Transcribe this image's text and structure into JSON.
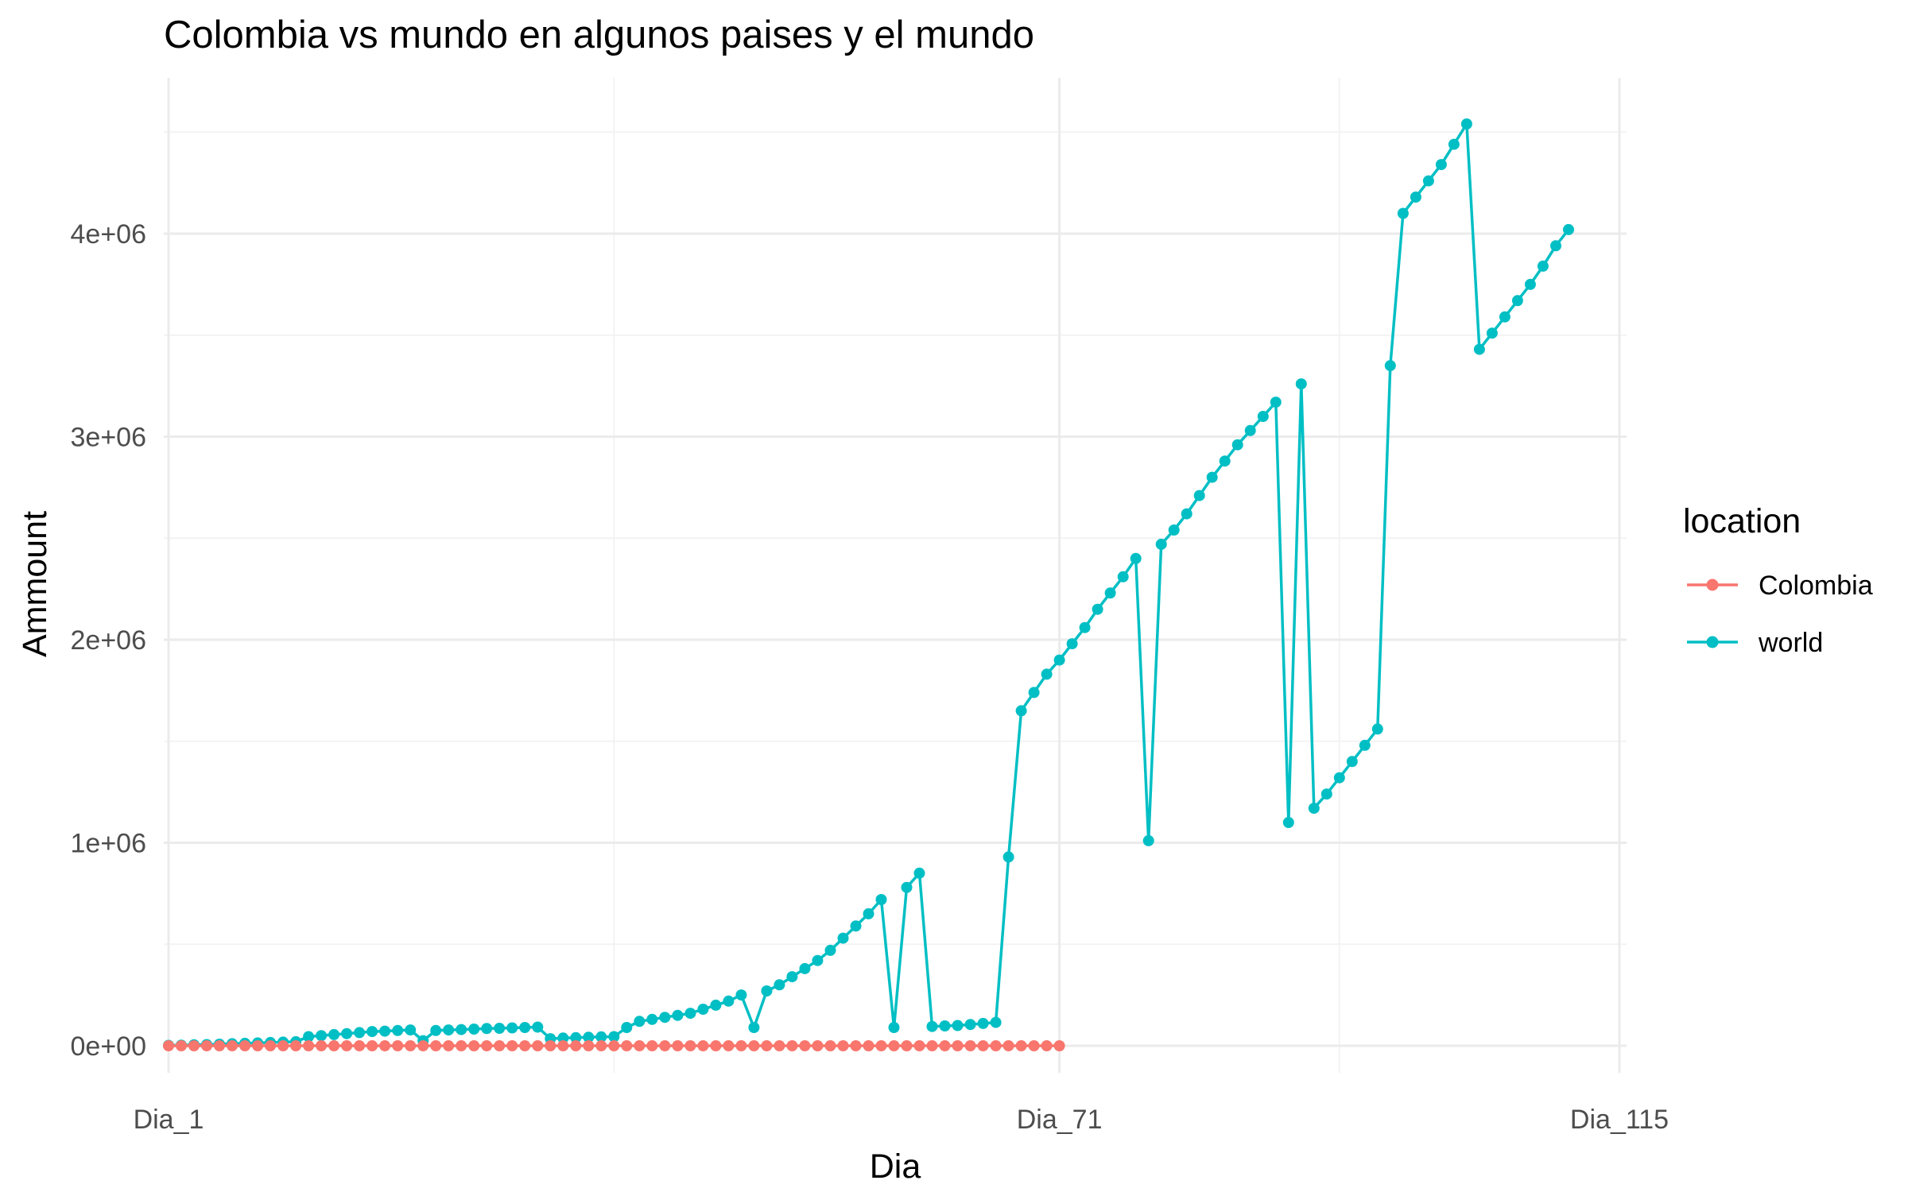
{
  "chart_data": {
    "type": "line",
    "title": "Colombia vs mundo en algunos paises y el mundo",
    "xlabel": "Dia",
    "ylabel": "Ammount",
    "x_tick_labels": [
      {
        "label": "Dia_1",
        "day": 1
      },
      {
        "label": "Dia_71",
        "day": 71
      },
      {
        "label": "Dia_115",
        "day": 115
      }
    ],
    "y_ticks": [
      {
        "label": "0e+00",
        "value": 0
      },
      {
        "label": "1e+06",
        "value": 1000000
      },
      {
        "label": "2e+06",
        "value": 2000000
      },
      {
        "label": "3e+06",
        "value": 3000000
      },
      {
        "label": "4e+06",
        "value": 4000000
      }
    ],
    "xlim": [
      1,
      115
    ],
    "ylim": [
      0,
      4600000
    ],
    "grid": true,
    "legend": {
      "title": "location",
      "position": "right"
    },
    "series": [
      {
        "name": "Colombia",
        "color": "#F8766D",
        "x_start": 1,
        "values": [
          0,
          0,
          0,
          0,
          0,
          0,
          0,
          0,
          0,
          0,
          0,
          0,
          0,
          0,
          0,
          0,
          0,
          0,
          0,
          0,
          0,
          0,
          0,
          0,
          0,
          0,
          0,
          0,
          0,
          0,
          0,
          0,
          0,
          0,
          0,
          0,
          0,
          0,
          0,
          0,
          0,
          0,
          0,
          0,
          0,
          0,
          0,
          0,
          0,
          0,
          0,
          0,
          0,
          0,
          0,
          0,
          0,
          0,
          0,
          0,
          0,
          0,
          0,
          0,
          0,
          0,
          0,
          0,
          0,
          0,
          0
        ]
      },
      {
        "name": "world",
        "color": "#00BFC4",
        "x_start": 1,
        "values": [
          2000,
          3000,
          5000,
          6000,
          8000,
          10000,
          12000,
          14000,
          16000,
          18000,
          20000,
          45000,
          50000,
          55000,
          60000,
          65000,
          70000,
          72000,
          75000,
          78000,
          25000,
          75000,
          78000,
          80000,
          82000,
          85000,
          86000,
          88000,
          90000,
          92000,
          35000,
          38000,
          40000,
          42000,
          44000,
          45000,
          90000,
          120000,
          130000,
          140000,
          150000,
          160000,
          180000,
          200000,
          220000,
          250000,
          90000,
          270000,
          300000,
          340000,
          380000,
          420000,
          470000,
          530000,
          590000,
          650000,
          720000,
          90000,
          780000,
          850000,
          95000,
          98000,
          100000,
          105000,
          110000,
          115000,
          930000,
          1650000,
          1740000,
          1830000,
          1900000,
          1980000,
          2060000,
          2150000,
          2230000,
          2310000,
          2400000,
          1010000,
          2470000,
          2540000,
          2620000,
          2710000,
          2800000,
          2880000,
          2960000,
          3030000,
          3100000,
          3170000,
          1100000,
          3260000,
          1170000,
          1240000,
          1320000,
          1400000,
          1480000,
          1560000,
          3350000,
          4100000,
          4180000,
          4260000,
          4340000,
          4440000,
          4540000,
          3430000,
          3510000,
          3590000,
          3670000,
          3750000,
          3840000,
          3940000,
          4020000
        ]
      }
    ]
  }
}
